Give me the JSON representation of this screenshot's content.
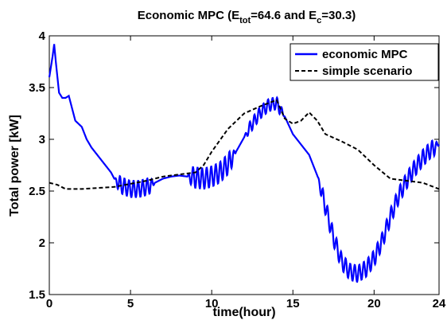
{
  "chart_data": {
    "type": "line",
    "title": {
      "prefix": "Economic MPC (E",
      "sub1": "tot",
      "mid": "=64.6 and E",
      "sub2": "c",
      "suffix": "=30.3)"
    },
    "xlabel": "time(hour)",
    "ylabel": "Total power [kW]",
    "xlim": [
      0,
      24
    ],
    "ylim": [
      1.5,
      4
    ],
    "xticks": [
      0,
      5,
      10,
      15,
      20,
      24
    ],
    "yticks": [
      1.5,
      2,
      2.5,
      3,
      3.5,
      4
    ],
    "grid": false,
    "legend_position": "top-right",
    "series": [
      {
        "name": "economic MPC",
        "color": "#0000ff",
        "style": "solid",
        "x": [
          0,
          0.1,
          0.2,
          0.3,
          0.4,
          0.6,
          0.8,
          1.0,
          1.2,
          1.4,
          1.6,
          1.8,
          2.0,
          2.3,
          2.6,
          2.9,
          3.2,
          3.5,
          3.8,
          4.0,
          4.2,
          4.5,
          5.0,
          5.5,
          6.0,
          6.5,
          7.0,
          7.5,
          8.0,
          8.5,
          9.0,
          9.5,
          10.0,
          10.5,
          11.0,
          11.5,
          12.0,
          12.5,
          13.0,
          13.5,
          14.0,
          14.5,
          15.0,
          15.5,
          16.0,
          16.5,
          17.0,
          17.5,
          18.0,
          18.5,
          19.0,
          19.5,
          20.0,
          20.5,
          21.0,
          21.5,
          22.0,
          22.5,
          23.0,
          23.5,
          24.0
        ],
        "y": [
          3.6,
          3.7,
          3.8,
          3.92,
          3.75,
          3.45,
          3.4,
          3.4,
          3.42,
          3.3,
          3.18,
          3.15,
          3.12,
          3.0,
          2.92,
          2.86,
          2.8,
          2.74,
          2.68,
          2.62,
          2.58,
          2.55,
          2.52,
          2.52,
          2.54,
          2.58,
          2.62,
          2.64,
          2.65,
          2.64,
          2.63,
          2.62,
          2.64,
          2.68,
          2.76,
          2.88,
          3.02,
          3.15,
          3.26,
          3.33,
          3.35,
          3.22,
          3.05,
          2.95,
          2.85,
          2.65,
          2.35,
          2.05,
          1.82,
          1.72,
          1.7,
          1.75,
          1.85,
          2.02,
          2.25,
          2.45,
          2.6,
          2.72,
          2.82,
          2.9,
          2.95
        ],
        "oscillation": [
          {
            "from": 4.0,
            "to": 6.5,
            "amplitude": 0.08,
            "period_hours": 0.28
          },
          {
            "from": 8.5,
            "to": 11.5,
            "amplitude": 0.1,
            "period_hours": 0.28
          },
          {
            "from": 12.0,
            "to": 14.5,
            "amplitude": 0.06,
            "period_hours": 0.28
          },
          {
            "from": 16.5,
            "to": 24.0,
            "amplitude": 0.08,
            "period_hours": 0.28
          }
        ]
      },
      {
        "name": "simple scenario",
        "color": "#000000",
        "style": "dashed",
        "x": [
          0,
          0.5,
          1.0,
          2.0,
          3.0,
          4.0,
          5.0,
          6.0,
          7.0,
          8.0,
          9.0,
          9.5,
          10.0,
          11.0,
          12.0,
          13.0,
          14.0,
          14.5,
          15.0,
          15.5,
          16.0,
          16.5,
          17.0,
          18.0,
          19.0,
          20.0,
          21.0,
          22.0,
          23.0,
          24.0
        ],
        "y": [
          2.58,
          2.56,
          2.52,
          2.52,
          2.53,
          2.54,
          2.57,
          2.6,
          2.64,
          2.66,
          2.68,
          2.75,
          2.88,
          3.1,
          3.25,
          3.32,
          3.38,
          3.2,
          3.15,
          3.18,
          3.26,
          3.18,
          3.05,
          2.98,
          2.9,
          2.75,
          2.62,
          2.6,
          2.58,
          2.52
        ]
      }
    ]
  }
}
